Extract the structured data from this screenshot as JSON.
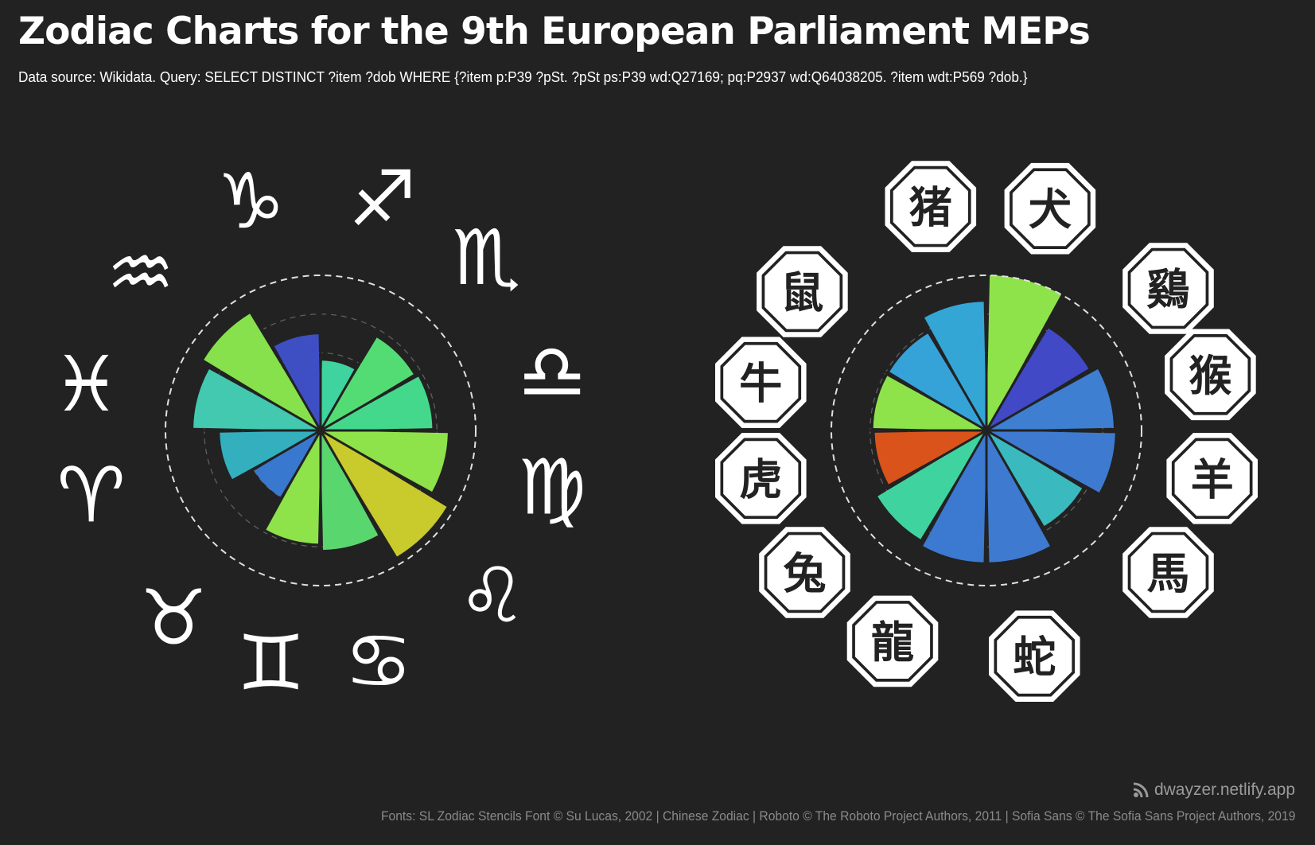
{
  "header": {
    "title": "Zodiac Charts for the 9th European Parliament MEPs",
    "subtitle": "Data source: Wikidata. Query: SELECT DISTINCT ?item ?dob WHERE {?item p:P39 ?pSt. ?pSt ps:P39 wd:Q27169; pq:P2937 wd:Q64038205. ?item wdt:P569 ?dob.}"
  },
  "footer": {
    "site": "dwayzer.netlify.app",
    "site_icon": "rss-icon",
    "credits": "Fonts: SL Zodiac Stencils Font © Su Lucas, 2002 | Chinese Zodiac | Roboto © The Roboto Project Authors, 2011 | Sofia Sans © The Sofia Sans Project Authors, 2019"
  },
  "colors": {
    "background": "#222222",
    "guide": "#cfcfcf",
    "palette_low": "#4047c4",
    "palette_mid": "#3fd3a0",
    "palette_high": "#8ee24a",
    "palette_max": "#d9531a"
  },
  "chart_data": [
    {
      "type": "polar-bar",
      "rmax": 1.0,
      "categories": [
        "Aries",
        "Taurus",
        "Gemini",
        "Cancer",
        "Leo",
        "Virgo",
        "Libra",
        "Scorpio",
        "Sagittarius",
        "Capricorn",
        "Aquarius",
        "Pisces"
      ],
      "symbols": [
        "♈",
        "♉",
        "♊",
        "♋",
        "♌",
        "♍",
        "♎",
        "♏",
        "♐",
        "♑",
        "♒",
        "♓"
      ],
      "icons": [
        "aries-icon",
        "taurus-icon",
        "gemini-icon",
        "cancer-icon",
        "leo-icon",
        "virgo-icon",
        "libra-icon",
        "scorpio-icon",
        "sagittarius-icon",
        "capricorn-icon",
        "aquarius-icon",
        "pisces-icon"
      ],
      "values": [
        0.82,
        0.72,
        0.7,
        0.45,
        0.62,
        0.88,
        0.82,
        0.65,
        0.5,
        0.73,
        0.77,
        0.95
      ],
      "colors": [
        "#8ee24a",
        "#44d88c",
        "#54dc74",
        "#3fd3a0",
        "#3e4fc4",
        "#86e14c",
        "#42c9b0",
        "#34afbe",
        "#3978cf",
        "#8ee24a",
        "#5ad66e",
        "#c9ca2c"
      ]
    },
    {
      "type": "polar-bar",
      "rmax": 1.0,
      "categories": [
        "Rat",
        "Ox",
        "Tiger",
        "Rabbit",
        "Dragon",
        "Snake",
        "Horse",
        "Goat",
        "Monkey",
        "Rooster",
        "Dog",
        "Pig"
      ],
      "symbols": [
        "鼠",
        "牛",
        "虎",
        "兔",
        "龍",
        "蛇",
        "馬",
        "羊",
        "猴",
        "鷄",
        "犬",
        "猪"
      ],
      "icons": [
        "rat-icon",
        "ox-icon",
        "tiger-icon",
        "rabbit-icon",
        "dragon-icon",
        "snake-icon",
        "horse-icon",
        "goat-icon",
        "monkey-icon",
        "rooster-icon",
        "dog-icon",
        "pig-icon"
      ],
      "values": [
        0.77,
        0.83,
        0.73,
        0.73,
        0.72,
        0.82,
        0.85,
        0.85,
        0.72,
        0.83,
        0.82,
        1.0
      ],
      "colors": [
        "#4149c6",
        "#33a6d6",
        "#36a3d8",
        "#8ee24a",
        "#d9531a",
        "#3fd3a0",
        "#3c79d0",
        "#3e7ad0",
        "#3ab9bf",
        "#3e7ad0",
        "#3e7fd2",
        "#8ee24a"
      ]
    }
  ]
}
